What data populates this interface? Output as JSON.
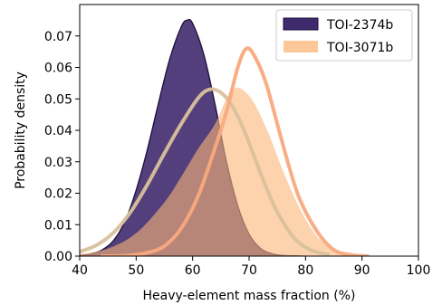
{
  "chart_data": {
    "type": "area",
    "xlabel": "Heavy-element mass fraction (%)",
    "ylabel": "Probability density",
    "xlim": [
      40,
      100
    ],
    "ylim": [
      0,
      0.08
    ],
    "xticks": [
      40,
      50,
      60,
      70,
      80,
      90,
      100
    ],
    "yticks": [
      0.0,
      0.01,
      0.02,
      0.03,
      0.04,
      0.05,
      0.06,
      0.07
    ],
    "grid": false,
    "legend_position": "top-right",
    "series": [
      {
        "name": "TOI-2374b",
        "style": "filled area with dark outline",
        "fill_color": "#3f2a6e",
        "edge_color": "#1c0f3a",
        "x": [
          40,
          42,
          44,
          46,
          48,
          50,
          52,
          54,
          56,
          58,
          59,
          60,
          62,
          64,
          66,
          68,
          70,
          72,
          74,
          76,
          78,
          80
        ],
        "y": [
          0.0002,
          0.0007,
          0.002,
          0.005,
          0.011,
          0.021,
          0.034,
          0.049,
          0.063,
          0.073,
          0.075,
          0.074,
          0.064,
          0.048,
          0.03,
          0.016,
          0.007,
          0.0025,
          0.0008,
          0.0002,
          0.0001,
          0.0
        ]
      },
      {
        "name": "TOI-3071b",
        "style": "filled area",
        "fill_color": "#fbb678",
        "x": [
          40,
          45,
          50,
          55,
          58,
          61,
          64,
          67,
          70,
          73,
          76,
          79,
          82,
          85,
          88,
          90
        ],
        "y": [
          0.0006,
          0.0024,
          0.0073,
          0.0171,
          0.0253,
          0.0342,
          0.0421,
          0.053,
          0.051,
          0.0409,
          0.0272,
          0.0151,
          0.0064,
          0.0022,
          0.0006,
          0.0002
        ]
      },
      {
        "style": "thick line",
        "color": "#d9c19c",
        "x": [
          40,
          43,
          46,
          49,
          52,
          55,
          58,
          61,
          63,
          65,
          67,
          69,
          71,
          73,
          75,
          78,
          81,
          84
        ],
        "y": [
          0.0014,
          0.0035,
          0.0075,
          0.014,
          0.0228,
          0.0327,
          0.0421,
          0.0503,
          0.053,
          0.052,
          0.0478,
          0.0405,
          0.0312,
          0.022,
          0.014,
          0.0057,
          0.0019,
          0.0005
        ]
      },
      {
        "style": "thick line",
        "color": "#f9a97e",
        "x": [
          44,
          48,
          52,
          55,
          58,
          61,
          64,
          66,
          68,
          69.5,
          71,
          73,
          75,
          77,
          79,
          82,
          85,
          88,
          91
        ],
        "y": [
          0.0,
          0.0001,
          0.0011,
          0.0032,
          0.0089,
          0.0192,
          0.0346,
          0.046,
          0.06,
          0.066,
          0.0635,
          0.055,
          0.042,
          0.029,
          0.018,
          0.008,
          0.002,
          0.0004,
          0.0
        ]
      }
    ],
    "legend": [
      "TOI-2374b",
      "TOI-3071b"
    ]
  }
}
